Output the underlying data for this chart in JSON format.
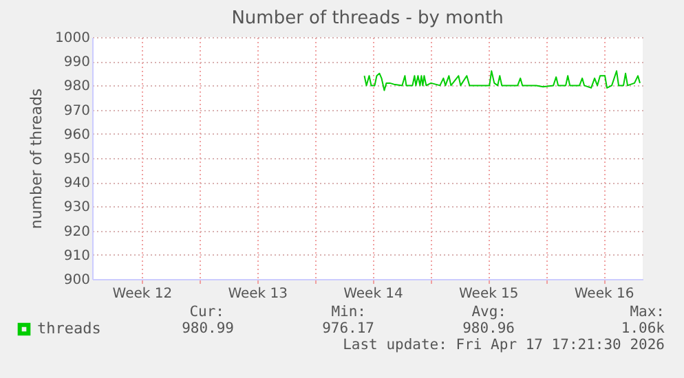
{
  "chart_data": {
    "type": "line",
    "title": "Number of threads - by month",
    "ylabel": "number of threads",
    "x": [
      "2026-04-01T00:00",
      "2026-04-01T03:00",
      "2026-04-01T07:00",
      "2026-04-01T10:00",
      "2026-04-01T15:00",
      "2026-04-01T18:00",
      "2026-04-01T22:00",
      "2026-04-02T01:00",
      "2026-04-02T05:00",
      "2026-04-02T08:00",
      "2026-04-02T13:00",
      "2026-04-02T19:00",
      "2026-04-03T07:00",
      "2026-04-03T11:00",
      "2026-04-03T13:00",
      "2026-04-03T22:00",
      "2026-04-04T01:00",
      "2026-04-04T03:00",
      "2026-04-04T06:00",
      "2026-04-04T09:00",
      "2026-04-04T11:00",
      "2026-04-04T13:00",
      "2026-04-04T15:00",
      "2026-04-04T18:00",
      "2026-04-05T01:00",
      "2026-04-05T14:00",
      "2026-04-05T19:00",
      "2026-04-05T22:00",
      "2026-04-06T03:00",
      "2026-04-06T06:00",
      "2026-04-06T17:00",
      "2026-04-06T20:00",
      "2026-04-07T05:00",
      "2026-04-07T09:00",
      "2026-04-08T02:00",
      "2026-04-08T14:00",
      "2026-04-08T17:00",
      "2026-04-08T21:00",
      "2026-04-09T02:00",
      "2026-04-09T05:00",
      "2026-04-09T08:00",
      "2026-04-10T07:00",
      "2026-04-10T11:00",
      "2026-04-10T14:00",
      "2026-04-11T10:00",
      "2026-04-11T20:00",
      "2026-04-12T11:00",
      "2026-04-12T15:00",
      "2026-04-12T18:00",
      "2026-04-13T05:00",
      "2026-04-13T08:00",
      "2026-04-13T11:00",
      "2026-04-14T01:00",
      "2026-04-14T05:00",
      "2026-04-14T08:00",
      "2026-04-14T18:00",
      "2026-04-14T23:00",
      "2026-04-15T03:00",
      "2026-04-15T07:00",
      "2026-04-15T14:00",
      "2026-04-15T17:00",
      "2026-04-16T00:00",
      "2026-04-16T07:00",
      "2026-04-16T10:00",
      "2026-04-16T17:00",
      "2026-04-16T20:00",
      "2026-04-16T23:00",
      "2026-04-17T09:00",
      "2026-04-17T14:00",
      "2026-04-17T17:00"
    ],
    "series": [
      {
        "name": "threads",
        "color": "#00cc00",
        "values": [
          984,
          980,
          984,
          980,
          980,
          984,
          985,
          983,
          978,
          981,
          981,
          980.5,
          980,
          984,
          980,
          980,
          984,
          980,
          984,
          980,
          984,
          980,
          984,
          980,
          981,
          980,
          983,
          980,
          984,
          980,
          984,
          980,
          984,
          980,
          980,
          980,
          986,
          981,
          980,
          984,
          980,
          980,
          983,
          980,
          980,
          979.5,
          980,
          983.5,
          980,
          980,
          984,
          980,
          980,
          983,
          980,
          979,
          983,
          980,
          984,
          984,
          979,
          980,
          986,
          980,
          980,
          985,
          980,
          981,
          984,
          981
        ]
      }
    ],
    "xlim": [
      "2026-03-15T12:00",
      "2026-04-17T21:00"
    ],
    "xticks": [
      {
        "value": "2026-03-18T12:00",
        "label": "Week 12"
      },
      {
        "value": "2026-03-22T00:00",
        "label": null
      },
      {
        "value": "2026-03-25T12:00",
        "label": "Week 13"
      },
      {
        "value": "2026-03-29T00:00",
        "label": null
      },
      {
        "value": "2026-04-01T12:00",
        "label": "Week 14"
      },
      {
        "value": "2026-04-05T00:00",
        "label": null
      },
      {
        "value": "2026-04-08T12:00",
        "label": "Week 15"
      },
      {
        "value": "2026-04-12T00:00",
        "label": null
      },
      {
        "value": "2026-04-15T12:00",
        "label": "Week 16"
      }
    ],
    "ylim": [
      900,
      1000
    ],
    "yticks": [
      900,
      910,
      920,
      930,
      940,
      950,
      960,
      970,
      980,
      990,
      1000
    ],
    "grid": true,
    "legend": "bottom left",
    "marker": "none",
    "line_style": "solid",
    "annotations": [
      "Cur:",
      "Min:",
      "Avg:",
      "Max:",
      "980.99",
      "976.17",
      "980.96",
      "1.06k",
      "Last update: Fri Apr 17 17:21:30 2026"
    ]
  }
}
